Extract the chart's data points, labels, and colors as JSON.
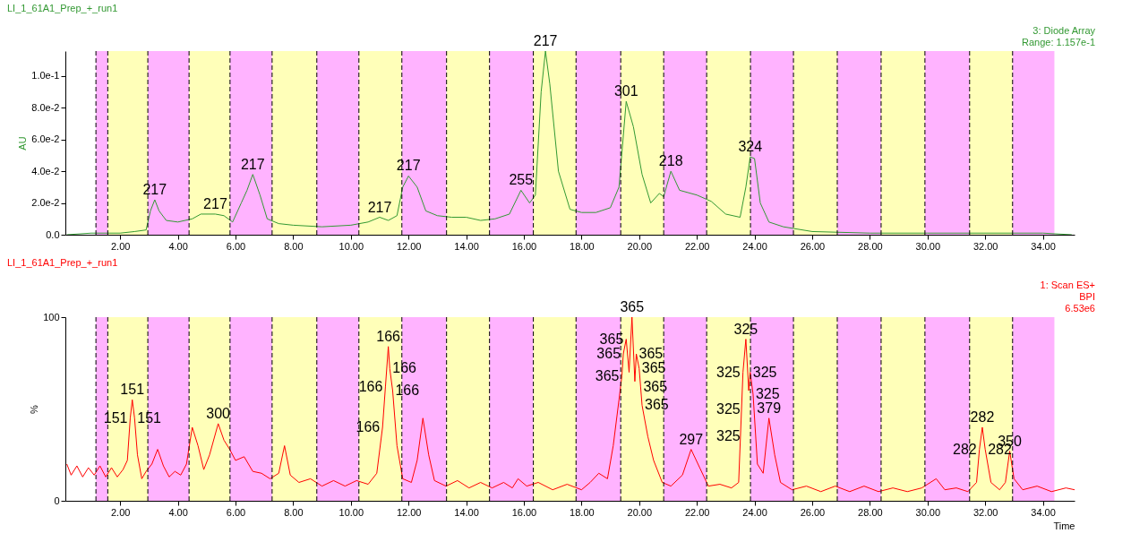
{
  "chart_data": [
    {
      "type": "line",
      "title": "LI_1_61A1_Prep_+_run1",
      "ylabel": "AU",
      "annotations": [
        "3: Diode Array",
        "Range: 1.157e-1",
        {
          "text": "217",
          "x": 3.2,
          "y": 0.022
        },
        {
          "text": "217",
          "x": 5.3,
          "y": 0.013
        },
        {
          "text": "217",
          "x": 6.6,
          "y": 0.038
        },
        {
          "text": "217",
          "x": 11.0,
          "y": 0.011
        },
        {
          "text": "217",
          "x": 12.0,
          "y": 0.037
        },
        {
          "text": "255",
          "x": 15.9,
          "y": 0.028
        },
        {
          "text": "217",
          "x": 16.75,
          "y": 0.1157
        },
        {
          "text": "301",
          "x": 19.55,
          "y": 0.084
        },
        {
          "text": "218",
          "x": 21.1,
          "y": 0.04
        },
        {
          "text": "324",
          "x": 23.85,
          "y": 0.049
        }
      ],
      "series": [
        {
          "color": "#339933",
          "x": [
            0.15,
            1.0,
            2.0,
            2.5,
            2.9,
            3.05,
            3.2,
            3.35,
            3.6,
            4.0,
            4.5,
            4.8,
            5.3,
            5.6,
            5.9,
            6.2,
            6.4,
            6.6,
            6.85,
            7.1,
            7.5,
            8.0,
            9.0,
            10.0,
            10.6,
            11.0,
            11.3,
            11.6,
            11.8,
            12.0,
            12.3,
            12.6,
            13.0,
            13.5,
            14.0,
            14.5,
            15.0,
            15.5,
            15.9,
            16.2,
            16.4,
            16.6,
            16.75,
            16.9,
            17.2,
            17.6,
            18.0,
            18.5,
            19.0,
            19.3,
            19.55,
            19.8,
            20.1,
            20.4,
            20.7,
            20.85,
            21.1,
            21.4,
            22.0,
            22.5,
            23.0,
            23.5,
            23.7,
            23.85,
            24.0,
            24.2,
            24.5,
            25.0,
            26.0,
            28.0,
            30.0,
            34.0,
            35.0
          ],
          "values": [
            0.0,
            0.001,
            0.001,
            0.002,
            0.003,
            0.015,
            0.022,
            0.015,
            0.009,
            0.008,
            0.01,
            0.013,
            0.013,
            0.012,
            0.008,
            0.02,
            0.028,
            0.038,
            0.025,
            0.01,
            0.007,
            0.006,
            0.005,
            0.006,
            0.008,
            0.011,
            0.009,
            0.012,
            0.03,
            0.037,
            0.03,
            0.015,
            0.012,
            0.011,
            0.011,
            0.009,
            0.01,
            0.013,
            0.028,
            0.02,
            0.025,
            0.09,
            0.1157,
            0.095,
            0.04,
            0.016,
            0.014,
            0.014,
            0.017,
            0.03,
            0.084,
            0.068,
            0.038,
            0.02,
            0.026,
            0.024,
            0.04,
            0.028,
            0.025,
            0.021,
            0.013,
            0.011,
            0.03,
            0.049,
            0.048,
            0.02,
            0.008,
            0.005,
            0.002,
            0.001,
            0.001,
            0.001,
            0.0
          ]
        }
      ],
      "xlim": [
        0.1,
        35.1
      ],
      "ylim": [
        0,
        0.1157
      ],
      "xticks": [
        {
          "value": 2,
          "label": "2.00"
        },
        {
          "value": 4,
          "label": "4.00"
        },
        {
          "value": 6,
          "label": "6.00"
        },
        {
          "value": 8,
          "label": "8.00"
        },
        {
          "value": 10,
          "label": "10.00"
        },
        {
          "value": 12,
          "label": "12.00"
        },
        {
          "value": 14,
          "label": "14.00"
        },
        {
          "value": 16,
          "label": "16.00"
        },
        {
          "value": 18,
          "label": "18.00"
        },
        {
          "value": 20,
          "label": "20.00"
        },
        {
          "value": 22,
          "label": "22.00"
        },
        {
          "value": 24,
          "label": "24.00"
        },
        {
          "value": 26,
          "label": "26.00"
        },
        {
          "value": 28,
          "label": "28.00"
        },
        {
          "value": 30,
          "label": "30.00"
        },
        {
          "value": 32,
          "label": "32.00"
        },
        {
          "value": 34,
          "label": "34.00"
        }
      ],
      "yticks": [
        {
          "value": 0,
          "label": "0.0"
        },
        {
          "value": 0.02,
          "label": "2.0e-2"
        },
        {
          "value": 0.04,
          "label": "4.0e-2"
        },
        {
          "value": 0.06,
          "label": "6.0e-2"
        },
        {
          "value": 0.08,
          "label": "8.0e-2"
        },
        {
          "value": 0.1,
          "label": "1.0e-1"
        }
      ],
      "bands": [
        {
          "axis": "x",
          "from": 1.16,
          "to": 1.57,
          "color": "#ffb3ff"
        },
        {
          "axis": "x",
          "from": 1.57,
          "to": 2.96,
          "color": "#ffffb9"
        },
        {
          "axis": "x",
          "from": 2.96,
          "to": 4.39,
          "color": "#ffb3ff"
        },
        {
          "axis": "x",
          "from": 4.39,
          "to": 5.81,
          "color": "#ffffb9"
        },
        {
          "axis": "x",
          "from": 5.81,
          "to": 7.27,
          "color": "#ffb3ff"
        },
        {
          "axis": "x",
          "from": 7.27,
          "to": 8.82,
          "color": "#ffffb9"
        },
        {
          "axis": "x",
          "from": 8.82,
          "to": 10.28,
          "color": "#ffb3ff"
        },
        {
          "axis": "x",
          "from": 10.28,
          "to": 11.77,
          "color": "#ffffb9"
        },
        {
          "axis": "x",
          "from": 11.77,
          "to": 13.32,
          "color": "#ffb3ff"
        },
        {
          "axis": "x",
          "from": 13.32,
          "to": 14.81,
          "color": "#ffffb9"
        },
        {
          "axis": "x",
          "from": 14.81,
          "to": 16.33,
          "color": "#ffb3ff"
        },
        {
          "axis": "x",
          "from": 16.33,
          "to": 17.81,
          "color": "#ffffb9"
        },
        {
          "axis": "x",
          "from": 17.81,
          "to": 19.36,
          "color": "#ffb3ff"
        },
        {
          "axis": "x",
          "from": 19.36,
          "to": 20.85,
          "color": "#ffffb9"
        },
        {
          "axis": "x",
          "from": 20.85,
          "to": 22.34,
          "color": "#ffb3ff"
        },
        {
          "axis": "x",
          "from": 22.34,
          "to": 23.86,
          "color": "#ffffb9"
        },
        {
          "axis": "x",
          "from": 23.86,
          "to": 25.35,
          "color": "#ffb3ff"
        },
        {
          "axis": "x",
          "from": 25.35,
          "to": 26.87,
          "color": "#ffffb9"
        },
        {
          "axis": "x",
          "from": 26.87,
          "to": 28.39,
          "color": "#ffb3ff"
        },
        {
          "axis": "x",
          "from": 28.39,
          "to": 29.91,
          "color": "#ffffb9"
        },
        {
          "axis": "x",
          "from": 29.91,
          "to": 31.46,
          "color": "#ffb3ff"
        },
        {
          "axis": "x",
          "from": 31.46,
          "to": 32.95,
          "color": "#ffffb9"
        },
        {
          "axis": "x",
          "from": 32.95,
          "to": 34.4,
          "color": "#ffb3ff"
        }
      ],
      "ref_lines": [
        {
          "axis": "x",
          "value": 1.16,
          "line_style": "dashed"
        },
        {
          "axis": "x",
          "value": 1.57,
          "line_style": "dashed"
        },
        {
          "axis": "x",
          "value": 2.96,
          "line_style": "dashed"
        },
        {
          "axis": "x",
          "value": 4.39,
          "line_style": "dashed"
        },
        {
          "axis": "x",
          "value": 5.81,
          "line_style": "dashed"
        },
        {
          "axis": "x",
          "value": 7.27,
          "line_style": "dashed"
        },
        {
          "axis": "x",
          "value": 8.82,
          "line_style": "dashed"
        },
        {
          "axis": "x",
          "value": 10.28,
          "line_style": "dashed"
        },
        {
          "axis": "x",
          "value": 11.77,
          "line_style": "dashed"
        },
        {
          "axis": "x",
          "value": 13.32,
          "line_style": "dashed"
        },
        {
          "axis": "x",
          "value": 14.81,
          "line_style": "dashed"
        },
        {
          "axis": "x",
          "value": 16.33,
          "line_style": "dashed"
        },
        {
          "axis": "x",
          "value": 17.81,
          "line_style": "dashed"
        },
        {
          "axis": "x",
          "value": 19.36,
          "line_style": "dashed"
        },
        {
          "axis": "x",
          "value": 20.85,
          "line_style": "dashed"
        },
        {
          "axis": "x",
          "value": 22.34,
          "line_style": "dashed"
        },
        {
          "axis": "x",
          "value": 23.86,
          "line_style": "dashed"
        },
        {
          "axis": "x",
          "value": 25.35,
          "line_style": "dashed"
        },
        {
          "axis": "x",
          "value": 26.87,
          "line_style": "dashed"
        },
        {
          "axis": "x",
          "value": 28.39,
          "line_style": "dashed"
        },
        {
          "axis": "x",
          "value": 29.91,
          "line_style": "dashed"
        },
        {
          "axis": "x",
          "value": 31.46,
          "line_style": "dashed"
        },
        {
          "axis": "x",
          "value": 32.95,
          "line_style": "dashed"
        }
      ],
      "grid": false
    },
    {
      "type": "line",
      "title": "LI_1_61A1_Prep_+_run1",
      "ylabel": "%",
      "xlabel": "Time",
      "annotations": [
        "1: Scan ES+",
        "BPI",
        "6.53e6",
        {
          "text": "151",
          "x": 2.42,
          "y": 55
        },
        {
          "text": "151",
          "x": 2.35,
          "y": 45
        },
        {
          "text": "151",
          "x": 2.5,
          "y": 45
        },
        {
          "text": "300",
          "x": 5.4,
          "y": 42
        },
        {
          "text": "166",
          "x": 11.3,
          "y": 84
        },
        {
          "text": "166",
          "x": 11.35,
          "y": 72
        },
        {
          "text": "166",
          "x": 11.2,
          "y": 62
        },
        {
          "text": "166",
          "x": 11.45,
          "y": 60
        },
        {
          "text": "166",
          "x": 11.1,
          "y": 40
        },
        {
          "text": "365",
          "x": 19.75,
          "y": 100
        },
        {
          "text": "365",
          "x": 19.55,
          "y": 88
        },
        {
          "text": "365",
          "x": 19.45,
          "y": 80
        },
        {
          "text": "365",
          "x": 19.4,
          "y": 68
        },
        {
          "text": "365",
          "x": 19.9,
          "y": 80
        },
        {
          "text": "365",
          "x": 20.0,
          "y": 72
        },
        {
          "text": "365",
          "x": 20.05,
          "y": 62
        },
        {
          "text": "365",
          "x": 20.1,
          "y": 52
        },
        {
          "text": "297",
          "x": 21.8,
          "y": 28
        },
        {
          "text": "325",
          "x": 23.7,
          "y": 88
        },
        {
          "text": "325",
          "x": 23.6,
          "y": 70
        },
        {
          "text": "325",
          "x": 23.85,
          "y": 70
        },
        {
          "text": "325",
          "x": 23.95,
          "y": 58
        },
        {
          "text": "325",
          "x": 23.6,
          "y": 50
        },
        {
          "text": "325",
          "x": 23.6,
          "y": 35
        },
        {
          "text": "379",
          "x": 24.5,
          "y": 45
        },
        {
          "text": "282",
          "x": 31.9,
          "y": 40
        },
        {
          "text": "282",
          "x": 31.8,
          "y": 28
        },
        {
          "text": "282",
          "x": 32.0,
          "y": 28
        },
        {
          "text": "350",
          "x": 32.85,
          "y": 27
        }
      ],
      "series": [
        {
          "color": "#ff0000",
          "x": [
            0.15,
            0.3,
            0.5,
            0.7,
            0.9,
            1.1,
            1.3,
            1.5,
            1.7,
            1.9,
            2.1,
            2.25,
            2.35,
            2.42,
            2.5,
            2.6,
            2.75,
            2.9,
            3.1,
            3.3,
            3.5,
            3.7,
            3.9,
            4.1,
            4.3,
            4.5,
            4.7,
            4.9,
            5.1,
            5.4,
            5.6,
            5.8,
            6.0,
            6.3,
            6.6,
            6.9,
            7.2,
            7.5,
            7.7,
            7.9,
            8.2,
            8.6,
            9.0,
            9.4,
            9.8,
            10.2,
            10.6,
            10.9,
            11.1,
            11.2,
            11.3,
            11.35,
            11.45,
            11.6,
            11.8,
            12.1,
            12.3,
            12.5,
            12.7,
            12.9,
            13.3,
            13.7,
            14.1,
            14.5,
            14.9,
            15.3,
            15.6,
            15.8,
            16.1,
            16.5,
            17.0,
            17.5,
            18.0,
            18.3,
            18.6,
            18.9,
            19.1,
            19.3,
            19.4,
            19.45,
            19.55,
            19.65,
            19.75,
            19.85,
            19.9,
            20.0,
            20.05,
            20.1,
            20.3,
            20.5,
            20.8,
            21.1,
            21.5,
            21.8,
            22.1,
            22.4,
            22.8,
            23.2,
            23.45,
            23.6,
            23.7,
            23.8,
            23.85,
            23.95,
            24.1,
            24.3,
            24.5,
            24.7,
            24.9,
            25.3,
            25.8,
            26.3,
            26.8,
            27.3,
            27.8,
            28.3,
            28.8,
            29.3,
            29.8,
            30.3,
            30.6,
            31.0,
            31.4,
            31.7,
            31.8,
            31.9,
            32.0,
            32.2,
            32.5,
            32.7,
            32.85,
            33.0,
            33.3,
            33.8,
            34.3,
            34.8,
            35.1
          ],
          "values": [
            20,
            14,
            19,
            13,
            18,
            14,
            19,
            13,
            18,
            13,
            17,
            22,
            45,
            55,
            45,
            25,
            12,
            16,
            20,
            28,
            19,
            13,
            16,
            14,
            20,
            40,
            30,
            17,
            25,
            42,
            33,
            28,
            22,
            24,
            16,
            15,
            12,
            15,
            30,
            14,
            10,
            12,
            8,
            11,
            8,
            11,
            9,
            15,
            40,
            62,
            84,
            72,
            60,
            30,
            12,
            10,
            22,
            45,
            25,
            11,
            8,
            11,
            7,
            10,
            7,
            10,
            7,
            12,
            8,
            10,
            6,
            9,
            6,
            10,
            15,
            12,
            30,
            55,
            68,
            80,
            88,
            70,
            100,
            65,
            80,
            72,
            62,
            52,
            35,
            22,
            10,
            8,
            14,
            28,
            18,
            8,
            9,
            7,
            10,
            70,
            88,
            60,
            70,
            58,
            20,
            15,
            45,
            25,
            10,
            6,
            8,
            5,
            8,
            5,
            8,
            5,
            7,
            5,
            7,
            12,
            6,
            7,
            5,
            10,
            28,
            40,
            28,
            10,
            6,
            10,
            27,
            12,
            6,
            8,
            5,
            7,
            6
          ]
        }
      ],
      "xlim": [
        0.1,
        35.1
      ],
      "ylim": [
        0,
        100
      ],
      "xticks": [
        {
          "value": 2,
          "label": "2.00"
        },
        {
          "value": 4,
          "label": "4.00"
        },
        {
          "value": 6,
          "label": "6.00"
        },
        {
          "value": 8,
          "label": "8.00"
        },
        {
          "value": 10,
          "label": "10.00"
        },
        {
          "value": 12,
          "label": "12.00"
        },
        {
          "value": 14,
          "label": "14.00"
        },
        {
          "value": 16,
          "label": "16.00"
        },
        {
          "value": 18,
          "label": "18.00"
        },
        {
          "value": 20,
          "label": "20.00"
        },
        {
          "value": 22,
          "label": "22.00"
        },
        {
          "value": 24,
          "label": "24.00"
        },
        {
          "value": 26,
          "label": "26.00"
        },
        {
          "value": 28,
          "label": "28.00"
        },
        {
          "value": 30,
          "label": "30.00"
        },
        {
          "value": 32,
          "label": "32.00"
        },
        {
          "value": 34,
          "label": "34.00"
        }
      ],
      "yticks": [
        0,
        100
      ],
      "bands": [
        {
          "axis": "x",
          "from": 1.16,
          "to": 1.57,
          "color": "#ffb3ff"
        },
        {
          "axis": "x",
          "from": 1.57,
          "to": 2.96,
          "color": "#ffffb9"
        },
        {
          "axis": "x",
          "from": 2.96,
          "to": 4.39,
          "color": "#ffb3ff"
        },
        {
          "axis": "x",
          "from": 4.39,
          "to": 5.81,
          "color": "#ffffb9"
        },
        {
          "axis": "x",
          "from": 5.81,
          "to": 7.27,
          "color": "#ffb3ff"
        },
        {
          "axis": "x",
          "from": 7.27,
          "to": 8.82,
          "color": "#ffffb9"
        },
        {
          "axis": "x",
          "from": 8.82,
          "to": 10.28,
          "color": "#ffb3ff"
        },
        {
          "axis": "x",
          "from": 10.28,
          "to": 11.77,
          "color": "#ffffb9"
        },
        {
          "axis": "x",
          "from": 11.77,
          "to": 13.32,
          "color": "#ffb3ff"
        },
        {
          "axis": "x",
          "from": 13.32,
          "to": 14.81,
          "color": "#ffffb9"
        },
        {
          "axis": "x",
          "from": 14.81,
          "to": 16.33,
          "color": "#ffb3ff"
        },
        {
          "axis": "x",
          "from": 16.33,
          "to": 17.81,
          "color": "#ffffb9"
        },
        {
          "axis": "x",
          "from": 17.81,
          "to": 19.36,
          "color": "#ffb3ff"
        },
        {
          "axis": "x",
          "from": 19.36,
          "to": 20.85,
          "color": "#ffffb9"
        },
        {
          "axis": "x",
          "from": 20.85,
          "to": 22.34,
          "color": "#ffb3ff"
        },
        {
          "axis": "x",
          "from": 22.34,
          "to": 23.86,
          "color": "#ffffb9"
        },
        {
          "axis": "x",
          "from": 23.86,
          "to": 25.35,
          "color": "#ffb3ff"
        },
        {
          "axis": "x",
          "from": 25.35,
          "to": 26.87,
          "color": "#ffffb9"
        },
        {
          "axis": "x",
          "from": 26.87,
          "to": 28.39,
          "color": "#ffb3ff"
        },
        {
          "axis": "x",
          "from": 28.39,
          "to": 29.91,
          "color": "#ffffb9"
        },
        {
          "axis": "x",
          "from": 29.91,
          "to": 31.46,
          "color": "#ffb3ff"
        },
        {
          "axis": "x",
          "from": 31.46,
          "to": 32.95,
          "color": "#ffffb9"
        },
        {
          "axis": "x",
          "from": 32.95,
          "to": 34.4,
          "color": "#ffb3ff"
        }
      ],
      "ref_lines": [
        {
          "axis": "x",
          "value": 1.16,
          "line_style": "dashed"
        },
        {
          "axis": "x",
          "value": 1.57,
          "line_style": "dashed"
        },
        {
          "axis": "x",
          "value": 2.96,
          "line_style": "dashed"
        },
        {
          "axis": "x",
          "value": 4.39,
          "line_style": "dashed"
        },
        {
          "axis": "x",
          "value": 5.81,
          "line_style": "dashed"
        },
        {
          "axis": "x",
          "value": 7.27,
          "line_style": "dashed"
        },
        {
          "axis": "x",
          "value": 8.82,
          "line_style": "dashed"
        },
        {
          "axis": "x",
          "value": 10.28,
          "line_style": "dashed"
        },
        {
          "axis": "x",
          "value": 11.77,
          "line_style": "dashed"
        },
        {
          "axis": "x",
          "value": 13.32,
          "line_style": "dashed"
        },
        {
          "axis": "x",
          "value": 14.81,
          "line_style": "dashed"
        },
        {
          "axis": "x",
          "value": 16.33,
          "line_style": "dashed"
        },
        {
          "axis": "x",
          "value": 17.81,
          "line_style": "dashed"
        },
        {
          "axis": "x",
          "value": 19.36,
          "line_style": "dashed"
        },
        {
          "axis": "x",
          "value": 20.85,
          "line_style": "dashed"
        },
        {
          "axis": "x",
          "value": 22.34,
          "line_style": "dashed"
        },
        {
          "axis": "x",
          "value": 23.86,
          "line_style": "dashed"
        },
        {
          "axis": "x",
          "value": 25.35,
          "line_style": "dashed"
        },
        {
          "axis": "x",
          "value": 26.87,
          "line_style": "dashed"
        },
        {
          "axis": "x",
          "value": 28.39,
          "line_style": "dashed"
        },
        {
          "axis": "x",
          "value": 29.91,
          "line_style": "dashed"
        },
        {
          "axis": "x",
          "value": 31.46,
          "line_style": "dashed"
        },
        {
          "axis": "x",
          "value": 32.95,
          "line_style": "dashed"
        }
      ],
      "grid": false
    }
  ]
}
